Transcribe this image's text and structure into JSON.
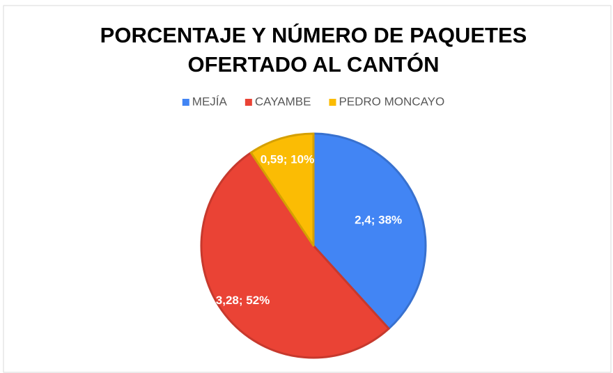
{
  "chart_data": {
    "type": "pie",
    "title": "PORCENTAJE Y NÚMERO DE PAQUETES OFERTADO AL CANTÓN",
    "categories": [
      "MEJÍA",
      "CAYAMBE",
      "PEDRO MONCAYO"
    ],
    "values": [
      2.4,
      3.28,
      0.59
    ],
    "value_labels": [
      "2,4; 38%",
      "3,28; 52%",
      "0,59; 10%"
    ],
    "colors": [
      "#4285f4",
      "#ea4335",
      "#fbbc04"
    ],
    "legend": "top"
  }
}
